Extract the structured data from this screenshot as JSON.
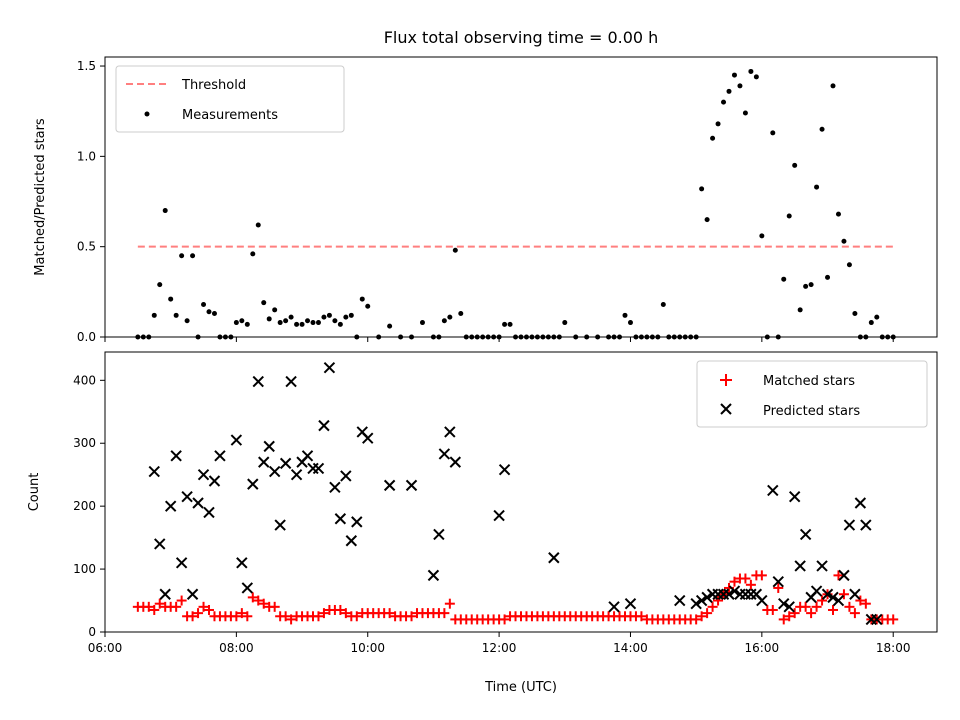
{
  "chart_data": [
    {
      "type": "scatter",
      "title": "Flux total observing time = 0.00 h",
      "xlabel": "",
      "ylabel": "Matched/Predicted stars",
      "xlim": [
        "06:00",
        "18:40"
      ],
      "ylim": [
        0,
        1.55
      ],
      "yticks": [
        0.0,
        0.5,
        1.0,
        1.5
      ],
      "ytick_labels": [
        "0.0",
        "0.5",
        "1.0",
        "1.5"
      ],
      "xticks": [
        "06:00",
        "08:00",
        "10:00",
        "12:00",
        "14:00",
        "16:00",
        "18:00"
      ],
      "xtick_labels_visible": false,
      "grid": false,
      "legend": "top-left",
      "series": [
        {
          "name": "Threshold",
          "style": "dashed-line",
          "color": "#ff7f7f",
          "x": [
            "06:30",
            "18:00"
          ],
          "y": [
            0.5,
            0.5
          ]
        },
        {
          "name": "Measurements",
          "style": "dot",
          "color": "#000000",
          "x": [
            "06:30",
            "06:35",
            "06:40",
            "06:45",
            "06:50",
            "06:55",
            "07:00",
            "07:05",
            "07:10",
            "07:15",
            "07:20",
            "07:25",
            "07:30",
            "07:35",
            "07:40",
            "07:45",
            "07:50",
            "07:55",
            "08:00",
            "08:05",
            "08:10",
            "08:15",
            "08:20",
            "08:25",
            "08:30",
            "08:35",
            "08:40",
            "08:45",
            "08:50",
            "08:55",
            "09:00",
            "09:05",
            "09:10",
            "09:15",
            "09:20",
            "09:25",
            "09:30",
            "09:35",
            "09:40",
            "09:45",
            "09:50",
            "09:55",
            "10:00",
            "10:10",
            "10:20",
            "10:30",
            "10:40",
            "10:50",
            "11:00",
            "11:05",
            "11:10",
            "11:15",
            "11:20",
            "11:25",
            "11:30",
            "11:35",
            "11:40",
            "11:45",
            "11:50",
            "11:55",
            "12:00",
            "12:05",
            "12:10",
            "12:15",
            "12:20",
            "12:25",
            "12:30",
            "12:35",
            "12:40",
            "12:45",
            "12:50",
            "12:55",
            "13:00",
            "13:10",
            "13:20",
            "13:30",
            "13:40",
            "13:45",
            "13:50",
            "13:55",
            "14:00",
            "14:05",
            "14:10",
            "14:15",
            "14:20",
            "14:25",
            "14:30",
            "14:35",
            "14:40",
            "14:45",
            "14:50",
            "14:55",
            "15:00",
            "15:05",
            "15:10",
            "15:15",
            "15:20",
            "15:25",
            "15:30",
            "15:35",
            "15:40",
            "15:45",
            "15:50",
            "15:55",
            "16:00",
            "16:05",
            "16:10",
            "16:15",
            "16:20",
            "16:25",
            "16:30",
            "16:35",
            "16:40",
            "16:45",
            "16:50",
            "16:55",
            "17:00",
            "17:05",
            "17:10",
            "17:15",
            "17:20",
            "17:25",
            "17:30",
            "17:35",
            "17:40",
            "17:45",
            "17:50",
            "17:55",
            "18:00"
          ],
          "y": [
            0.0,
            0.0,
            0.0,
            0.12,
            0.29,
            0.7,
            0.21,
            0.12,
            0.45,
            0.09,
            0.45,
            0.0,
            0.18,
            0.14,
            0.13,
            0.0,
            0.0,
            0.0,
            0.08,
            0.09,
            0.07,
            0.46,
            0.62,
            0.19,
            0.1,
            0.15,
            0.08,
            0.09,
            0.11,
            0.07,
            0.07,
            0.09,
            0.08,
            0.08,
            0.11,
            0.12,
            0.09,
            0.07,
            0.11,
            0.12,
            0.0,
            0.21,
            0.17,
            0.0,
            0.06,
            0.0,
            0.0,
            0.08,
            0.0,
            0.0,
            0.09,
            0.11,
            0.48,
            0.13,
            0.0,
            0.0,
            0.0,
            0.0,
            0.0,
            0.0,
            0.0,
            0.07,
            0.07,
            0.0,
            0.0,
            0.0,
            0.0,
            0.0,
            0.0,
            0.0,
            0.0,
            0.0,
            0.08,
            0.0,
            0.0,
            0.0,
            0.0,
            0.0,
            0.0,
            0.12,
            0.08,
            0.0,
            0.0,
            0.0,
            0.0,
            0.0,
            0.18,
            0.0,
            0.0,
            0.0,
            0.0,
            0.0,
            0.0,
            0.82,
            0.65,
            1.1,
            1.18,
            1.3,
            1.36,
            1.45,
            1.39,
            1.24,
            1.47,
            1.44,
            0.56,
            0.0,
            1.13,
            0.0,
            0.32,
            0.67,
            0.95,
            0.15,
            0.28,
            0.29,
            0.83,
            1.15,
            0.33,
            1.39,
            0.68,
            0.53,
            0.4,
            0.13,
            0.0,
            0.0,
            0.08,
            0.11,
            0.0,
            0.0,
            0.0
          ]
        }
      ]
    },
    {
      "type": "scatter",
      "title": "",
      "xlabel": "Time (UTC)",
      "ylabel": "Count",
      "xlim": [
        "06:00",
        "18:40"
      ],
      "ylim": [
        0,
        445
      ],
      "yticks": [
        0,
        100,
        200,
        300,
        400
      ],
      "ytick_labels": [
        "0",
        "100",
        "200",
        "300",
        "400"
      ],
      "xticks": [
        "06:00",
        "08:00",
        "10:00",
        "12:00",
        "14:00",
        "16:00",
        "18:00"
      ],
      "xtick_labels": [
        "06:00",
        "08:00",
        "10:00",
        "12:00",
        "14:00",
        "16:00",
        "18:00"
      ],
      "grid": false,
      "legend": "top-right",
      "series": [
        {
          "name": "Matched stars",
          "marker": "plus",
          "color": "#ff0000",
          "x": [
            "06:30",
            "06:35",
            "06:40",
            "06:45",
            "06:50",
            "06:55",
            "07:00",
            "07:05",
            "07:10",
            "07:15",
            "07:20",
            "07:25",
            "07:30",
            "07:35",
            "07:40",
            "07:45",
            "07:50",
            "07:55",
            "08:00",
            "08:05",
            "08:10",
            "08:15",
            "08:20",
            "08:25",
            "08:30",
            "08:35",
            "08:40",
            "08:45",
            "08:50",
            "08:55",
            "09:00",
            "09:05",
            "09:10",
            "09:15",
            "09:20",
            "09:25",
            "09:30",
            "09:35",
            "09:40",
            "09:45",
            "09:50",
            "09:55",
            "10:00",
            "10:05",
            "10:10",
            "10:15",
            "10:20",
            "10:25",
            "10:30",
            "10:35",
            "10:40",
            "10:45",
            "10:50",
            "10:55",
            "11:00",
            "11:05",
            "11:10",
            "11:15",
            "11:20",
            "11:25",
            "11:30",
            "11:35",
            "11:40",
            "11:45",
            "11:50",
            "11:55",
            "12:00",
            "12:05",
            "12:10",
            "12:15",
            "12:20",
            "12:25",
            "12:30",
            "12:35",
            "12:40",
            "12:45",
            "12:50",
            "12:55",
            "13:00",
            "13:05",
            "13:10",
            "13:15",
            "13:20",
            "13:25",
            "13:30",
            "13:35",
            "13:40",
            "13:45",
            "13:50",
            "13:55",
            "14:00",
            "14:05",
            "14:10",
            "14:15",
            "14:20",
            "14:25",
            "14:30",
            "14:35",
            "14:40",
            "14:45",
            "14:50",
            "14:55",
            "15:00",
            "15:05",
            "15:10",
            "15:15",
            "15:20",
            "15:25",
            "15:30",
            "15:35",
            "15:40",
            "15:45",
            "15:50",
            "15:55",
            "16:00",
            "16:05",
            "16:10",
            "16:15",
            "16:20",
            "16:25",
            "16:30",
            "16:35",
            "16:40",
            "16:45",
            "16:50",
            "16:55",
            "17:00",
            "17:05",
            "17:10",
            "17:15",
            "17:20",
            "17:25",
            "17:30",
            "17:35",
            "17:40",
            "17:45",
            "17:50",
            "17:55",
            "18:00"
          ],
          "y": [
            40,
            40,
            40,
            35,
            45,
            40,
            40,
            40,
            50,
            25,
            25,
            30,
            40,
            35,
            25,
            25,
            25,
            25,
            25,
            30,
            25,
            55,
            50,
            45,
            40,
            40,
            25,
            25,
            20,
            25,
            25,
            25,
            25,
            25,
            30,
            35,
            35,
            35,
            30,
            25,
            25,
            30,
            30,
            30,
            30,
            30,
            30,
            25,
            25,
            25,
            25,
            30,
            30,
            30,
            30,
            30,
            30,
            45,
            20,
            20,
            20,
            20,
            20,
            20,
            20,
            20,
            20,
            20,
            25,
            25,
            25,
            25,
            25,
            25,
            25,
            25,
            25,
            25,
            25,
            25,
            25,
            25,
            25,
            25,
            25,
            25,
            25,
            25,
            25,
            25,
            25,
            25,
            25,
            20,
            20,
            20,
            20,
            20,
            20,
            20,
            20,
            20,
            20,
            25,
            30,
            40,
            50,
            60,
            70,
            80,
            85,
            85,
            75,
            90,
            90,
            35,
            35,
            70,
            20,
            25,
            30,
            40,
            40,
            30,
            40,
            50,
            60,
            35,
            90,
            60,
            40,
            30,
            50,
            45,
            20,
            20,
            20,
            20,
            20
          ]
        },
        {
          "name": "Predicted stars",
          "marker": "x",
          "color": "#000000",
          "x": [
            "06:45",
            "06:50",
            "06:55",
            "07:00",
            "07:05",
            "07:10",
            "07:15",
            "07:20",
            "07:25",
            "07:30",
            "07:35",
            "07:40",
            "07:45",
            "08:00",
            "08:05",
            "08:10",
            "08:15",
            "08:20",
            "08:25",
            "08:30",
            "08:35",
            "08:40",
            "08:45",
            "08:50",
            "08:55",
            "09:00",
            "09:05",
            "09:10",
            "09:15",
            "09:20",
            "09:25",
            "09:30",
            "09:35",
            "09:40",
            "09:45",
            "09:50",
            "09:55",
            "10:00",
            "10:20",
            "10:40",
            "11:00",
            "11:05",
            "11:10",
            "11:15",
            "11:20",
            "12:00",
            "12:05",
            "12:50",
            "13:45",
            "14:00",
            "14:45",
            "15:00",
            "15:05",
            "15:10",
            "15:15",
            "15:20",
            "15:25",
            "15:30",
            "15:35",
            "15:40",
            "15:45",
            "15:50",
            "15:55",
            "16:00",
            "16:10",
            "16:15",
            "16:20",
            "16:25",
            "16:30",
            "16:35",
            "16:40",
            "16:45",
            "16:50",
            "16:55",
            "17:00",
            "17:05",
            "17:10",
            "17:15",
            "17:20",
            "17:25",
            "17:30",
            "17:35",
            "17:40",
            "17:45"
          ],
          "y": [
            255,
            140,
            60,
            200,
            280,
            110,
            215,
            60,
            205,
            250,
            190,
            240,
            280,
            305,
            110,
            70,
            235,
            398,
            270,
            295,
            255,
            170,
            268,
            398,
            250,
            270,
            280,
            260,
            260,
            328,
            420,
            230,
            180,
            248,
            145,
            175,
            318,
            308,
            233,
            233,
            90,
            155,
            283,
            318,
            270,
            185,
            258,
            118,
            40,
            45,
            50,
            45,
            50,
            55,
            60,
            60,
            60,
            60,
            65,
            60,
            60,
            60,
            60,
            50,
            225,
            80,
            45,
            40,
            215,
            105,
            155,
            55,
            65,
            105,
            60,
            55,
            50,
            90,
            170,
            60,
            205,
            170,
            20,
            20
          ]
        }
      ]
    }
  ]
}
